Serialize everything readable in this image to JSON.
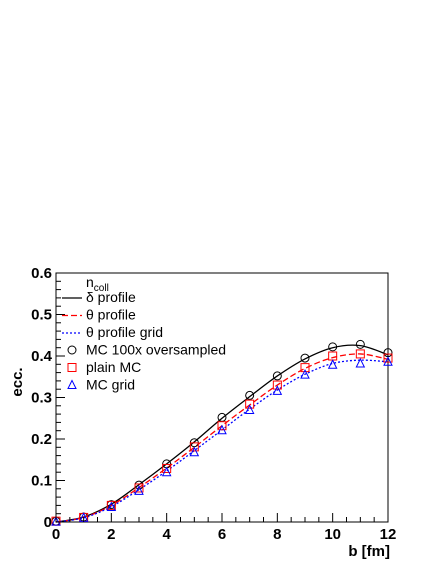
{
  "chart_data": {
    "type": "line",
    "xlabel": "b [fm]",
    "ylabel": "ecc.",
    "xlim": [
      0,
      12
    ],
    "ylim": [
      0,
      0.6
    ],
    "xticks": [
      0,
      2,
      4,
      6,
      8,
      10,
      12
    ],
    "yticks": [
      0,
      0.1,
      0.2,
      0.3,
      0.4,
      0.5,
      0.6
    ],
    "grid": false,
    "legend_placement": "top-left",
    "legend_header": {
      "main": "n",
      "sub": "coll"
    },
    "series": [
      {
        "name": "δ profile",
        "style": "line",
        "dash": "solid",
        "color": "#000000",
        "x": [
          0,
          1,
          2,
          3,
          4,
          5,
          6,
          7,
          8,
          9,
          10,
          11,
          12
        ],
        "y": [
          0.0,
          0.012,
          0.043,
          0.09,
          0.14,
          0.193,
          0.25,
          0.302,
          0.352,
          0.393,
          0.42,
          0.425,
          0.403
        ]
      },
      {
        "name": "θ profile",
        "style": "line",
        "dash": "dashed",
        "color": "#ff0000",
        "x": [
          0,
          1,
          2,
          3,
          4,
          5,
          6,
          7,
          8,
          9,
          10,
          11,
          12
        ],
        "y": [
          0.0,
          0.011,
          0.04,
          0.083,
          0.13,
          0.18,
          0.232,
          0.282,
          0.33,
          0.37,
          0.396,
          0.405,
          0.392
        ]
      },
      {
        "name": "θ profile grid",
        "style": "line",
        "dash": "dotted",
        "color": "#0000ff",
        "x": [
          0,
          1,
          2,
          3,
          4,
          5,
          6,
          7,
          8,
          9,
          10,
          11,
          12
        ],
        "y": [
          0.0,
          0.01,
          0.037,
          0.078,
          0.123,
          0.172,
          0.222,
          0.272,
          0.318,
          0.356,
          0.382,
          0.39,
          0.386
        ]
      },
      {
        "name": "MC 100x oversampled",
        "style": "marker",
        "marker": "circle",
        "color": "#000000",
        "x": [
          0,
          1,
          2,
          3,
          4,
          5,
          6,
          7,
          8,
          9,
          10,
          11,
          12
        ],
        "y": [
          0.002,
          0.012,
          0.042,
          0.089,
          0.14,
          0.191,
          0.252,
          0.305,
          0.352,
          0.395,
          0.422,
          0.428,
          0.408
        ]
      },
      {
        "name": "plain MC",
        "style": "marker",
        "marker": "square",
        "color": "#ff0000",
        "x": [
          0,
          1,
          2,
          3,
          4,
          5,
          6,
          7,
          8,
          9,
          10,
          11,
          12
        ],
        "y": [
          0.002,
          0.011,
          0.04,
          0.082,
          0.129,
          0.181,
          0.232,
          0.284,
          0.33,
          0.372,
          0.4,
          0.405,
          0.395
        ]
      },
      {
        "name": "MC grid",
        "style": "marker",
        "marker": "triangle",
        "color": "#0000ff",
        "x": [
          0,
          1,
          2,
          3,
          4,
          5,
          6,
          7,
          8,
          9,
          10,
          11,
          12
        ],
        "y": [
          0.001,
          0.01,
          0.036,
          0.075,
          0.12,
          0.168,
          0.221,
          0.27,
          0.316,
          0.355,
          0.379,
          0.382,
          0.386
        ]
      }
    ]
  }
}
